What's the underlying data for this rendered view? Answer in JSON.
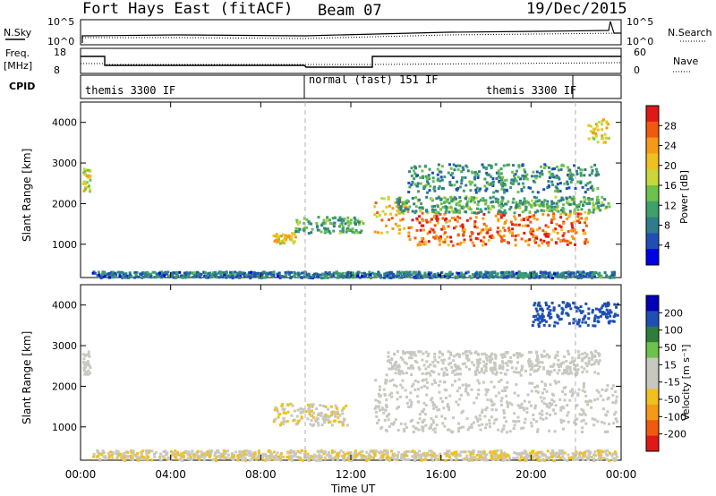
{
  "header": {
    "station": "Fort Hays East (fitACF)",
    "beam": "Beam 07",
    "date": "19/Dec/2015"
  },
  "panels": {
    "nsky": {
      "label": "N.Sky",
      "right_label": "N.Search",
      "tick_top": "10^5",
      "tick_bottom": "10^0"
    },
    "freq": {
      "label_top": "Freq.",
      "label_unit": "[MHz]",
      "tick_top": "18",
      "tick_bottom": "8",
      "right_tick_top": "60",
      "right_tick_bottom": "0",
      "right_label": "Nave"
    },
    "cpid": {
      "label": "CPID",
      "segments": [
        {
          "text": "themis 3300 IF"
        },
        {
          "text": "normal (fast) 151 IF"
        },
        {
          "text": "themis 3300 IF"
        }
      ]
    }
  },
  "power_panel": {
    "ylabel": "Slant Range [km]",
    "yticks": [
      "1000",
      "2000",
      "3000",
      "4000"
    ],
    "colorbar_label": "Power [dB]",
    "colorbar_ticks": [
      "4",
      "8",
      "12",
      "16",
      "20",
      "24",
      "28"
    ]
  },
  "velocity_panel": {
    "ylabel": "Slant Range [km]",
    "yticks": [
      "1000",
      "2000",
      "3000",
      "4000"
    ],
    "colorbar_label": "Velocity [m s⁻¹]",
    "colorbar_ticks": [
      "200",
      "100",
      "50",
      "15",
      "-15",
      "-50",
      "-100",
      "-200"
    ]
  },
  "xaxis": {
    "label": "Time UT",
    "ticks": [
      "00:00",
      "04:00",
      "08:00",
      "12:00",
      "16:00",
      "20:00",
      "00:00"
    ]
  },
  "colors": {
    "power_scale": [
      "#0000e6",
      "#1f4fb4",
      "#2f7d8a",
      "#3ea06a",
      "#6cc24a",
      "#c8d83a",
      "#f0c020",
      "#f59a18",
      "#f05a10",
      "#e01818"
    ],
    "velocity_scale": [
      "#e01818",
      "#f05a10",
      "#f59a18",
      "#f0c020",
      "#c8c8c0",
      "#c8c8c0",
      "#6cc24a",
      "#2f7d3a",
      "#1f4fb4",
      "#0000b4"
    ]
  },
  "chart_data": {
    "type": "heatmap",
    "x_range_hours": [
      0,
      24
    ],
    "y_range_km": [
      180,
      4500
    ],
    "power_regions": [
      {
        "t0": 0.05,
        "t1": 0.4,
        "r0": 2300,
        "r1": 2900,
        "db": 18
      },
      {
        "t0": 8.5,
        "t1": 9.5,
        "r0": 1050,
        "r1": 1300,
        "db": 20
      },
      {
        "t0": 9.5,
        "t1": 12.5,
        "r0": 1300,
        "r1": 1700,
        "db": 12
      },
      {
        "t0": 13.0,
        "t1": 14.5,
        "r0": 1300,
        "r1": 2200,
        "db": 22
      },
      {
        "t0": 14.5,
        "t1": 22.5,
        "r0": 1000,
        "r1": 1800,
        "db": 26
      },
      {
        "t0": 14.0,
        "t1": 23.5,
        "r0": 1800,
        "r1": 2200,
        "db": 12
      },
      {
        "t0": 14.5,
        "t1": 23.0,
        "r0": 2300,
        "r1": 3000,
        "db": 10
      },
      {
        "t0": 22.5,
        "t1": 23.5,
        "r0": 3500,
        "r1": 4100,
        "db": 20
      },
      {
        "t0": 0.5,
        "t1": 23.8,
        "r0": 200,
        "r1": 350,
        "db": 8
      }
    ],
    "velocity_regions": [
      {
        "t0": 0.05,
        "t1": 0.4,
        "r0": 2300,
        "r1": 2900,
        "v": 0
      },
      {
        "t0": 8.5,
        "t1": 11.8,
        "r0": 1050,
        "r1": 1600,
        "v": -50
      },
      {
        "t0": 13.0,
        "t1": 23.8,
        "r0": 900,
        "r1": 2200,
        "v": 0
      },
      {
        "t0": 13.5,
        "t1": 23.0,
        "r0": 2300,
        "r1": 2900,
        "v": 0
      },
      {
        "t0": 20.0,
        "t1": 23.8,
        "r0": 3500,
        "r1": 4100,
        "v": 200
      },
      {
        "t0": 0.5,
        "t1": 23.8,
        "r0": 200,
        "r1": 450,
        "v": -50
      }
    ]
  }
}
